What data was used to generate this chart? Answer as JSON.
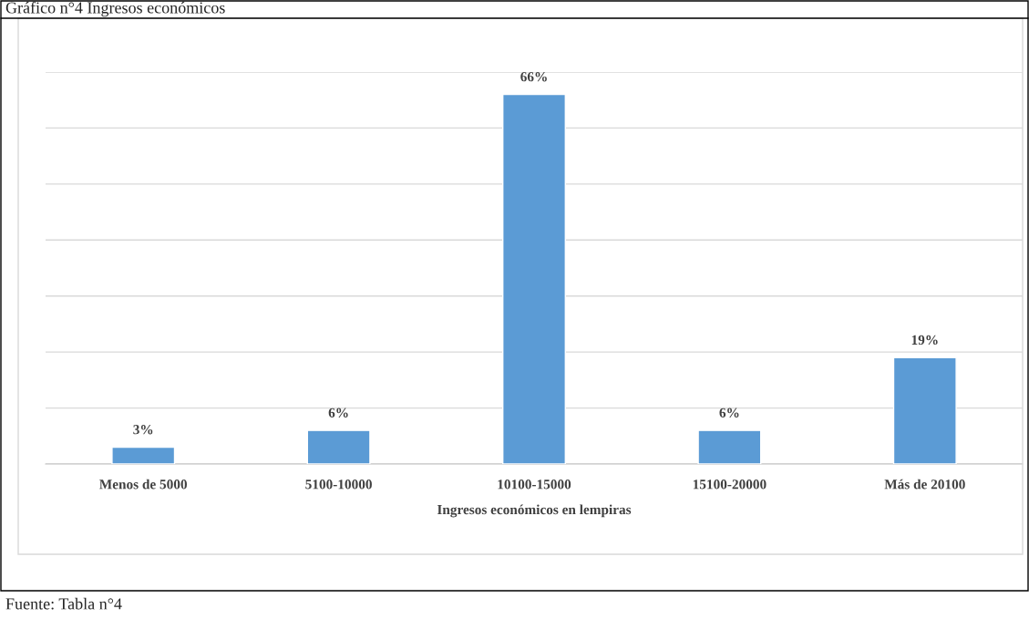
{
  "chart_data": {
    "type": "bar",
    "title": "Gráfico n°4 Ingresos económicos",
    "xlabel": "Ingresos económicos en lempiras",
    "categories": [
      "Menos de 5000",
      "5100-10000",
      "10100-15000",
      "15100-20000",
      "Más de 20100"
    ],
    "values": [
      3,
      6,
      66,
      6,
      19
    ],
    "value_labels": [
      "3%",
      "6%",
      "66%",
      "6%",
      "19%"
    ],
    "color": "#5b9bd5",
    "ylim": [
      0,
      70
    ],
    "yticks": [
      {
        "value": 0,
        "label": null
      },
      {
        "value": 10,
        "label": null
      },
      {
        "value": 20,
        "label": null
      },
      {
        "value": 30,
        "label": null
      },
      {
        "value": 40,
        "label": null
      },
      {
        "value": 50,
        "label": null
      },
      {
        "value": 60,
        "label": null
      },
      {
        "value": 70,
        "label": null
      }
    ],
    "tick_labels": "x",
    "grid": "y",
    "legend": false,
    "annotations": [
      "Fuente: Tabla n°4"
    ]
  }
}
